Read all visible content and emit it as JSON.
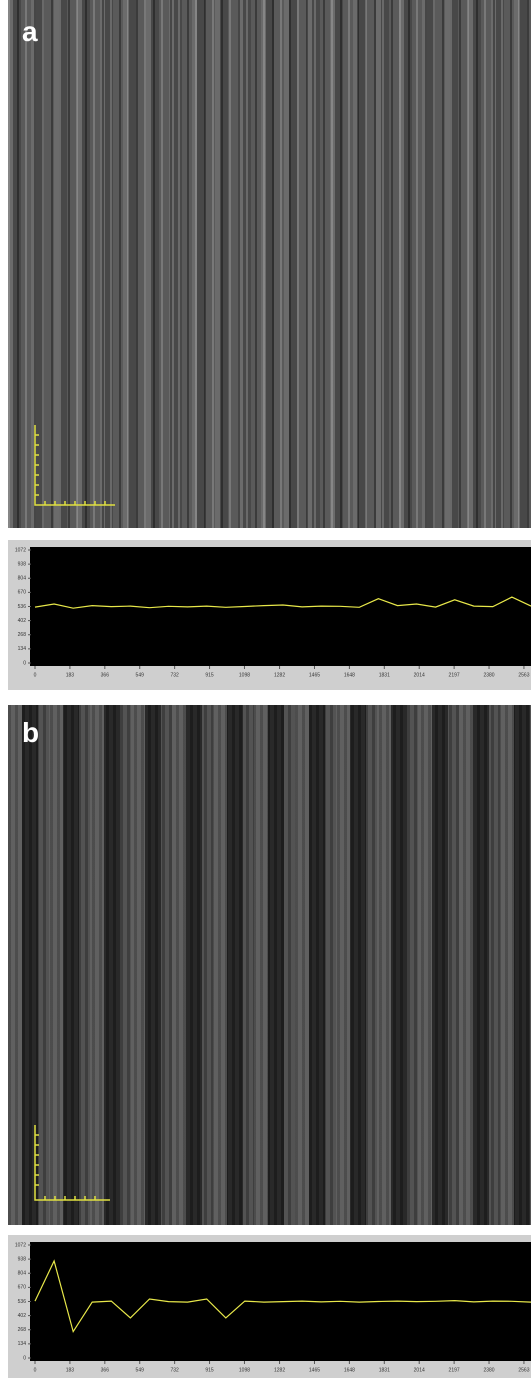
{
  "panels": [
    {
      "label": "a"
    },
    {
      "label": "b"
    }
  ],
  "chart_data": [
    {
      "type": "line",
      "color": "#e8e84a",
      "x": [
        0,
        100,
        200,
        300,
        400,
        500,
        600,
        700,
        800,
        900,
        1000,
        1100,
        1200,
        1300,
        1400,
        1500,
        1600,
        1700,
        1800,
        1900,
        2000,
        2100,
        2200,
        2300,
        2400,
        2500,
        2600
      ],
      "values": [
        530,
        560,
        520,
        545,
        535,
        540,
        525,
        538,
        532,
        540,
        528,
        536,
        545,
        550,
        532,
        540,
        538,
        528,
        610,
        545,
        560,
        530,
        600,
        540,
        535,
        625,
        540
      ],
      "xlim": [
        0,
        2600
      ],
      "ylim": [
        0,
        1072
      ],
      "xticks": [
        0,
        183,
        366,
        549,
        732,
        915,
        1098,
        1282,
        1465,
        1648,
        1831,
        2014,
        2197,
        2380,
        2563
      ],
      "yticks": [
        0,
        134,
        268,
        402,
        536,
        670,
        804,
        938,
        1072
      ]
    },
    {
      "type": "line",
      "color": "#e8e84a",
      "x": [
        0,
        100,
        200,
        300,
        400,
        500,
        600,
        700,
        800,
        900,
        1000,
        1100,
        1200,
        1300,
        1400,
        1500,
        1600,
        1700,
        1800,
        1900,
        2000,
        2100,
        2200,
        2300,
        2400,
        2500,
        2600
      ],
      "values": [
        540,
        920,
        250,
        530,
        540,
        380,
        560,
        535,
        530,
        560,
        380,
        540,
        530,
        535,
        540,
        532,
        538,
        530,
        536,
        540,
        535,
        538,
        545,
        532,
        540,
        538,
        530
      ],
      "xlim": [
        0,
        2600
      ],
      "ylim": [
        0,
        1072
      ],
      "xticks": [
        0,
        183,
        366,
        549,
        732,
        915,
        1098,
        1282,
        1465,
        1648,
        1831,
        2014,
        2197,
        2380,
        2563
      ],
      "yticks": [
        0,
        134,
        268,
        402,
        536,
        670,
        804,
        938,
        1072
      ]
    }
  ]
}
